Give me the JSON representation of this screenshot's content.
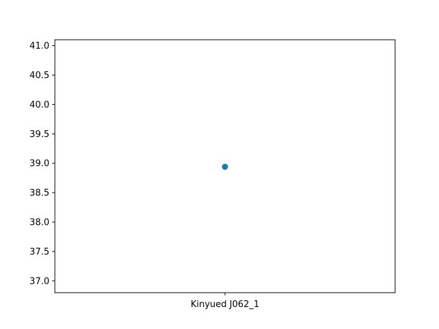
{
  "chart_data": {
    "type": "scatter",
    "title": "",
    "xlabel": "",
    "ylabel": "",
    "categories": [
      "Kinyued J062_1"
    ],
    "series": [
      {
        "values": [
          38.94
        ]
      }
    ],
    "ylim": [
      36.8,
      41.1
    ],
    "yticks": [
      37.0,
      37.5,
      38.0,
      38.5,
      39.0,
      39.5,
      40.0,
      40.5,
      41.0
    ],
    "ytick_labels": [
      "37.0",
      "37.5",
      "38.0",
      "38.5",
      "39.0",
      "39.5",
      "40.0",
      "40.5",
      "41.0"
    ],
    "grid": false,
    "legend": "none",
    "marker_color": "#1f77b4"
  }
}
